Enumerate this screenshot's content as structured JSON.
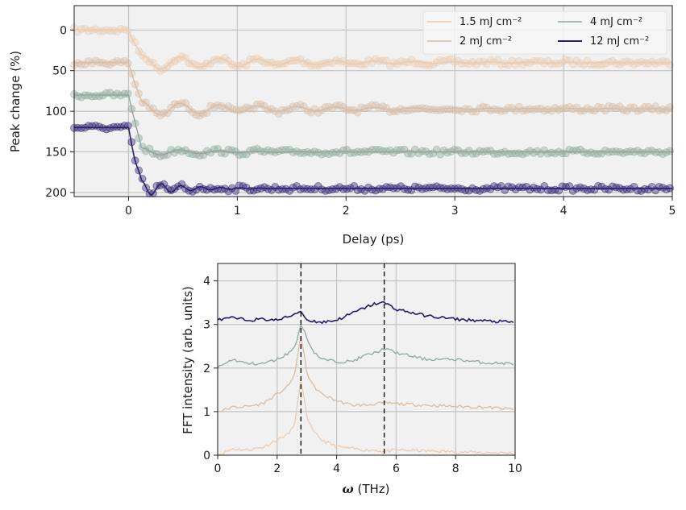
{
  "chart_data": [
    {
      "type": "scatter",
      "title": "",
      "xlabel": "Delay (ps)",
      "ylabel": "Peak change (%)",
      "xlim": [
        -0.5,
        5
      ],
      "ylim": [
        205,
        -30
      ],
      "y_inverted": true,
      "xticks": [
        0,
        1,
        2,
        3,
        4,
        5
      ],
      "yticks": [
        0,
        50,
        100,
        150,
        200
      ],
      "grid": true,
      "legend_position": "top-right",
      "legend_columns": 2,
      "series": [
        {
          "name": "1.5 mJ cm⁻²",
          "color": "#ebcbb0",
          "baseline_before": 0,
          "step": 40,
          "osc_amp": 10,
          "freq_thz": 2.8,
          "damping_ps": 1.3,
          "noise": 3
        },
        {
          "name": "2 mJ cm⁻²",
          "color": "#d8bca4",
          "baseline_before": 40,
          "step": 57,
          "osc_amp": 10,
          "freq_thz": 2.8,
          "damping_ps": 1.2,
          "noise": 3
        },
        {
          "name": "4 mJ cm⁻²",
          "color": "#8fa89b",
          "baseline_before": 80,
          "step": 70,
          "osc_amp": 6,
          "freq_thz": 2.8,
          "damping_ps": 0.6,
          "noise": 3
        },
        {
          "name": "12 mJ cm⁻²",
          "color": "#2a1f6e",
          "baseline_before": 120,
          "step": 75,
          "osc_amp": 14,
          "freq_thz": 5.5,
          "damping_ps": 0.35,
          "noise": 3
        }
      ]
    },
    {
      "type": "line",
      "title": "",
      "xlabel": "ω (THz)",
      "xlabel_symbol": "ω",
      "xlabel_unit": " (THz)",
      "ylabel": "FFT intensity (arb. units)",
      "xlim": [
        0,
        10
      ],
      "ylim": [
        0,
        4.4
      ],
      "xticks": [
        0,
        2,
        4,
        6,
        8,
        10
      ],
      "yticks": [
        0,
        1,
        2,
        3,
        4
      ],
      "grid": true,
      "vlines": [
        2.8,
        5.6
      ],
      "x": [
        0,
        0.5,
        1,
        1.5,
        2,
        2.4,
        2.6,
        2.8,
        3.0,
        3.2,
        3.5,
        4,
        4.5,
        5,
        5.3,
        5.6,
        6,
        7,
        8,
        9,
        10
      ],
      "series": [
        {
          "name": "1.5 mJ cm⁻²",
          "color": "#ebcbb0",
          "values": [
            0.0,
            0.15,
            0.12,
            0.18,
            0.35,
            0.5,
            0.75,
            1.75,
            0.9,
            0.55,
            0.35,
            0.2,
            0.15,
            0.12,
            0.12,
            0.08,
            0.12,
            0.1,
            0.08,
            0.06,
            0.05
          ]
        },
        {
          "name": "2 mJ cm⁻²",
          "color": "#d8bca4",
          "values": [
            1.0,
            1.1,
            1.12,
            1.18,
            1.4,
            1.6,
            1.9,
            2.75,
            1.9,
            1.6,
            1.4,
            1.25,
            1.15,
            1.15,
            1.18,
            1.2,
            1.18,
            1.15,
            1.12,
            1.1,
            1.05
          ]
        },
        {
          "name": "4 mJ cm⁻²",
          "color": "#8fa89b",
          "values": [
            2.0,
            2.2,
            2.1,
            2.1,
            2.2,
            2.35,
            2.5,
            3.0,
            2.7,
            2.4,
            2.2,
            2.15,
            2.15,
            2.3,
            2.35,
            2.45,
            2.35,
            2.2,
            2.2,
            2.12,
            2.1
          ]
        },
        {
          "name": "12 mJ cm⁻²",
          "color": "#22196a",
          "values": [
            3.1,
            3.15,
            3.1,
            3.12,
            3.1,
            3.18,
            3.25,
            3.3,
            3.1,
            3.08,
            3.05,
            3.1,
            3.25,
            3.4,
            3.48,
            3.5,
            3.35,
            3.2,
            3.12,
            3.08,
            3.05
          ]
        }
      ]
    }
  ]
}
